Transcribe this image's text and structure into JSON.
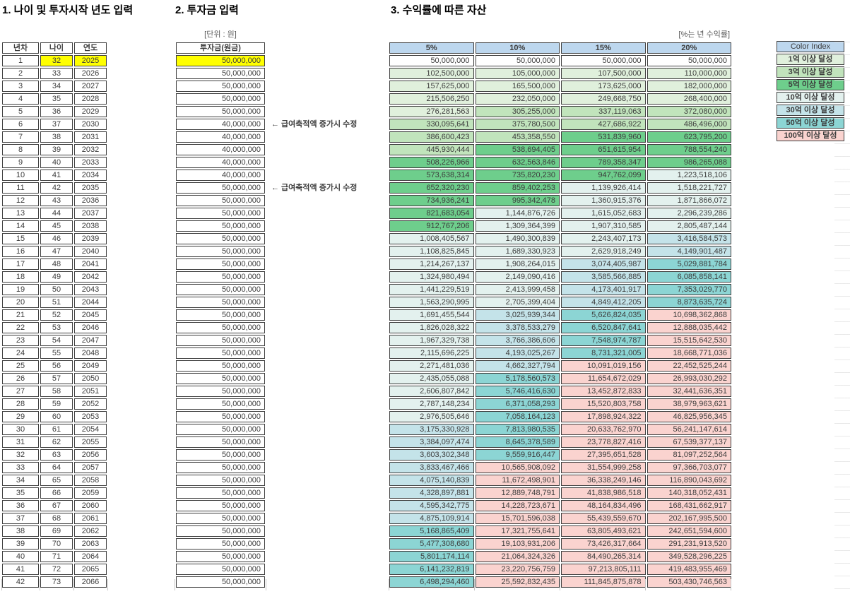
{
  "titles": {
    "section1": "1. 나이 및 투자시작 년도 입력",
    "section2": "2. 투자금 입력",
    "section3": "3. 수익률에 따른 자산"
  },
  "labels": {
    "invest_unit": "[단위 : 원]",
    "rate_unit": "[%는 년 수익률]"
  },
  "left_table": {
    "headers": [
      "년차",
      "나이",
      "연도"
    ]
  },
  "invest_table": {
    "header": "투자금(원금)"
  },
  "asset_table": {
    "headers": [
      "5%",
      "10%",
      "15%",
      "20%"
    ]
  },
  "annotations": [
    {
      "row": 6,
      "text": "← 급여축적액 증가시 수정"
    },
    {
      "row": 11,
      "text": "← 급여축적액 증가시 수정"
    }
  ],
  "color_index": {
    "title": "Color Index",
    "entries": [
      {
        "label": "1억 이상 달성",
        "min": 100000000,
        "color": "#E0F0DC"
      },
      {
        "label": "3억 이상 달성",
        "min": 300000000,
        "color": "#C1E4BC"
      },
      {
        "label": "5억 이상 달성",
        "min": 500000000,
        "color": "#6ECE8C"
      },
      {
        "label": "10억 이상 달성",
        "min": 1000000000,
        "color": "#E3F1EE"
      },
      {
        "label": "30억 이상 달성",
        "min": 3000000000,
        "color": "#C4E3E9"
      },
      {
        "label": "50억 이상 달성",
        "min": 5000000000,
        "color": "#8CD5D4"
      },
      {
        "label": "100억 이상 달성",
        "min": 10000000000,
        "color": "#FAD3CF"
      }
    ]
  },
  "colors": {
    "header_blue": "#BDD7EE",
    "highlight_yellow": "#FFFF00",
    "border": "#3F3F3F",
    "text": "#3C3C3C",
    "default_cell": "#FFFFFF"
  },
  "rows": [
    [
      1,
      32,
      2025,
      50000000,
      50000000,
      50000000,
      50000000,
      50000000
    ],
    [
      2,
      33,
      2026,
      50000000,
      102500000,
      105000000,
      107500000,
      110000000
    ],
    [
      3,
      34,
      2027,
      50000000,
      157625000,
      165500000,
      173625000,
      182000000
    ],
    [
      4,
      35,
      2028,
      50000000,
      215506250,
      232050000,
      249668750,
      268400000
    ],
    [
      5,
      36,
      2029,
      50000000,
      276281563,
      305255000,
      337119063,
      372080000
    ],
    [
      6,
      37,
      2030,
      40000000,
      330095641,
      375780500,
      427686922,
      486496000
    ],
    [
      7,
      38,
      2031,
      40000000,
      386600423,
      453358550,
      531839960,
      623795200
    ],
    [
      8,
      39,
      2032,
      40000000,
      445930444,
      538694405,
      651615954,
      788554240
    ],
    [
      9,
      40,
      2033,
      40000000,
      508226966,
      632563846,
      789358347,
      986265088
    ],
    [
      10,
      41,
      2034,
      40000000,
      573638314,
      735820230,
      947762099,
      1223518106
    ],
    [
      11,
      42,
      2035,
      50000000,
      652320230,
      859402253,
      1139926414,
      1518221727
    ],
    [
      12,
      43,
      2036,
      50000000,
      734936241,
      995342478,
      1360915376,
      1871866072
    ],
    [
      13,
      44,
      2037,
      50000000,
      821683054,
      1144876726,
      1615052683,
      2296239286
    ],
    [
      14,
      45,
      2038,
      50000000,
      912767206,
      1309364399,
      1907310585,
      2805487144
    ],
    [
      15,
      46,
      2039,
      50000000,
      1008405567,
      1490300839,
      2243407173,
      3416584573
    ],
    [
      16,
      47,
      2040,
      50000000,
      1108825845,
      1689330923,
      2629918249,
      4149901487
    ],
    [
      17,
      48,
      2041,
      50000000,
      1214267137,
      1908264015,
      3074405987,
      5029881784
    ],
    [
      18,
      49,
      2042,
      50000000,
      1324980494,
      2149090416,
      3585566885,
      6085858141
    ],
    [
      19,
      50,
      2043,
      50000000,
      1441229519,
      2413999458,
      4173401917,
      7353029770
    ],
    [
      20,
      51,
      2044,
      50000000,
      1563290995,
      2705399404,
      4849412205,
      8873635724
    ],
    [
      21,
      52,
      2045,
      50000000,
      1691455544,
      3025939344,
      5626824035,
      10698362868
    ],
    [
      22,
      53,
      2046,
      50000000,
      1826028322,
      3378533279,
      6520847641,
      12888035442
    ],
    [
      23,
      54,
      2047,
      50000000,
      1967329738,
      3766386606,
      7548974787,
      15515642530
    ],
    [
      24,
      55,
      2048,
      50000000,
      2115696225,
      4193025267,
      8731321005,
      18668771036
    ],
    [
      25,
      56,
      2049,
      50000000,
      2271481036,
      4662327794,
      10091019156,
      22452525244
    ],
    [
      26,
      57,
      2050,
      50000000,
      2435055088,
      5178560573,
      11654672029,
      26993030292
    ],
    [
      27,
      58,
      2051,
      50000000,
      2606807842,
      5746416630,
      13452872833,
      32441636351
    ],
    [
      28,
      59,
      2052,
      50000000,
      2787148234,
      6371058293,
      15520803758,
      38979963621
    ],
    [
      29,
      60,
      2053,
      50000000,
      2976505646,
      7058164123,
      17898924322,
      46825956345
    ],
    [
      30,
      61,
      2054,
      50000000,
      3175330928,
      7813980535,
      20633762970,
      56241147614
    ],
    [
      31,
      62,
      2055,
      50000000,
      3384097474,
      8645378589,
      23778827416,
      67539377137
    ],
    [
      32,
      63,
      2056,
      50000000,
      3603302348,
      9559916447,
      27395651528,
      81097252564
    ],
    [
      33,
      64,
      2057,
      50000000,
      3833467466,
      10565908092,
      31554999258,
      97366703077
    ],
    [
      34,
      65,
      2058,
      50000000,
      4075140839,
      11672498901,
      36338249146,
      116890043692
    ],
    [
      35,
      66,
      2059,
      50000000,
      4328897881,
      12889748791,
      41838986518,
      140318052431
    ],
    [
      36,
      67,
      2060,
      50000000,
      4595342775,
      14228723671,
      48164834496,
      168431662917
    ],
    [
      37,
      68,
      2061,
      50000000,
      4875109914,
      15701596038,
      55439559670,
      202167995500
    ],
    [
      38,
      69,
      2062,
      50000000,
      5168865409,
      17321755641,
      63805493621,
      242651594600
    ],
    [
      39,
      70,
      2063,
      50000000,
      5477308680,
      19103931206,
      73426317664,
      291231913520
    ],
    [
      40,
      71,
      2064,
      50000000,
      5801174114,
      21064324326,
      84490265314,
      349528296225
    ],
    [
      41,
      72,
      2065,
      50000000,
      6141232819,
      23220756759,
      97213805111,
      419483955469
    ],
    [
      42,
      73,
      2066,
      50000000,
      6498294460,
      25592832435,
      111845875878,
      503430746563
    ]
  ]
}
